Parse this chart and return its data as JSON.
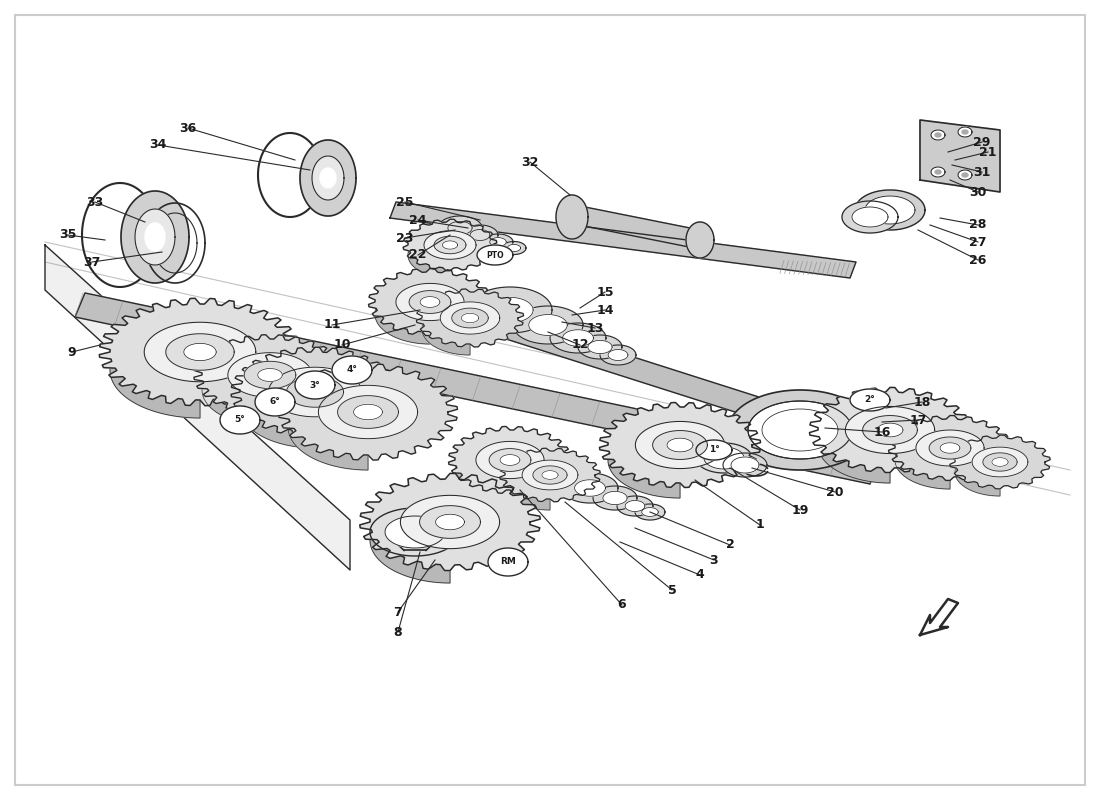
{
  "bg_color": "#ffffff",
  "line_color": "#2a2a2a",
  "fill_light": "#e8e8e8",
  "fill_mid": "#d0d0d0",
  "fill_dark": "#b8b8b8",
  "fill_white": "#ffffff",
  "figsize": [
    11.0,
    8.0
  ],
  "dpi": 100,
  "border_color": "#cccccc",
  "text_color": "#1a1a1a",
  "shaft_fill": "#c0c0c0",
  "gear_fill": "#d8d8d8",
  "gear_inner": "#f0f0f0"
}
